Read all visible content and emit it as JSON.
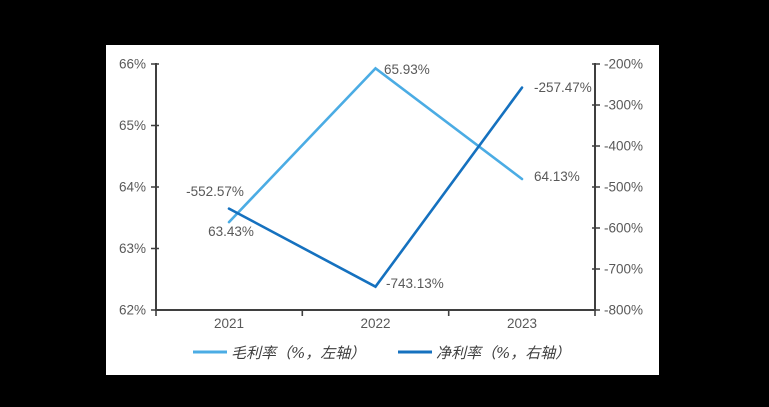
{
  "colors": {
    "page_background": "#000000",
    "panel_background": "#ffffff",
    "axis_line": "#3f3f3f",
    "tick_text": "#595959",
    "gross_margin_line": "#4BACE4",
    "net_margin_line": "#1571BF"
  },
  "chart_data": {
    "type": "line",
    "title": "",
    "xlabel": "",
    "ylabel": "",
    "grid": false,
    "legend_position": "bottom",
    "categories": [
      "2021",
      "2022",
      "2023"
    ],
    "series": [
      {
        "name": "毛利率（%，左轴）",
        "axis": "left",
        "color": "#4BACE4",
        "values": [
          63.43,
          65.93,
          64.13
        ],
        "labels": [
          "63.43%",
          "65.93%",
          "64.13%"
        ]
      },
      {
        "name": "净利率（%，右轴）",
        "axis": "right",
        "color": "#1571BF",
        "values": [
          -552.57,
          -743.13,
          -257.47
        ],
        "labels": [
          "-552.57%",
          "-743.13%",
          "-257.47%"
        ]
      }
    ],
    "left_axis": {
      "min": 62,
      "max": 66,
      "ticks": [
        "66%",
        "65%",
        "64%",
        "63%",
        "62%"
      ]
    },
    "right_axis": {
      "min": -800,
      "max": -200,
      "ticks": [
        "-200%",
        "-300%",
        "-400%",
        "-500%",
        "-600%",
        "-700%",
        "-800%"
      ]
    }
  }
}
